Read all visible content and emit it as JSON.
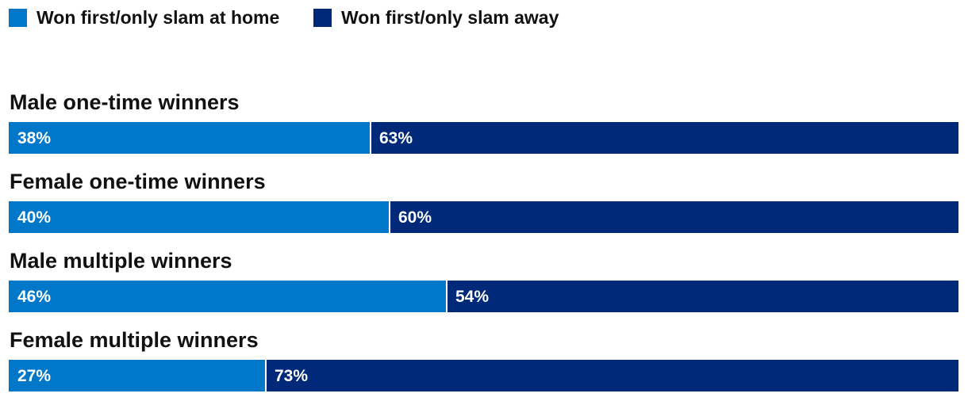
{
  "chart_data": {
    "type": "bar",
    "orientation": "horizontal",
    "stacked": true,
    "percent": true,
    "legend_position": "top-left",
    "grid": false,
    "xlim": [
      0,
      100
    ],
    "categories": [
      "Male one-time winners",
      "Female one-time winners",
      "Male multiple winners",
      "Female multiple winners"
    ],
    "series": [
      {
        "name": "Won first/only slam at home",
        "color": "#0077C8",
        "values": [
          38,
          40,
          46,
          27
        ],
        "labels": [
          "38%",
          "40%",
          "46%",
          "27%"
        ]
      },
      {
        "name": "Won first/only slam away",
        "color": "#00297A",
        "values": [
          63,
          60,
          54,
          73
        ],
        "labels": [
          "63%",
          "60%",
          "54%",
          "73%"
        ]
      }
    ]
  }
}
